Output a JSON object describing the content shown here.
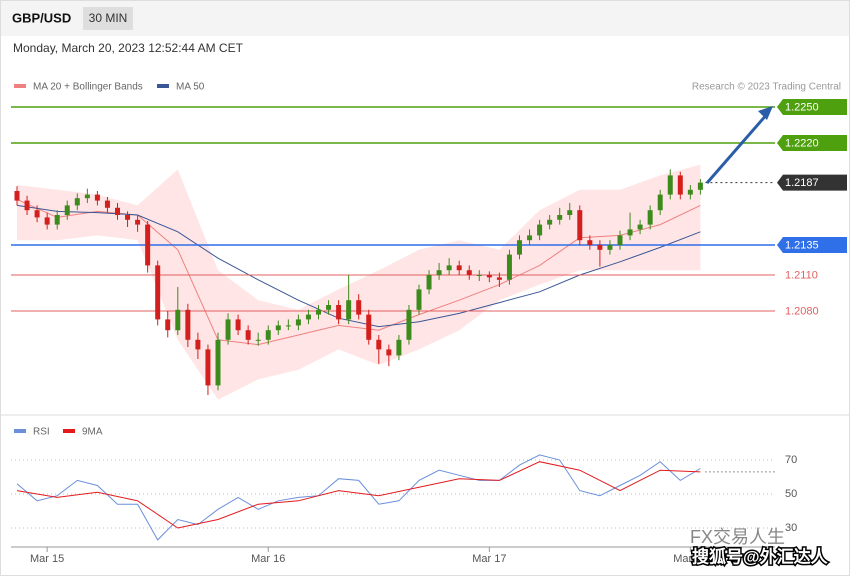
{
  "header": {
    "symbol": "GBP/USD",
    "interval": "30 MIN",
    "timestamp": "Monday, March 20, 2023 12:52:44 AM CET"
  },
  "watermark": {
    "line1": "FX交易人生",
    "line2": "搜狐号@外汇达人"
  },
  "chart_data": [
    {
      "type": "candlestick",
      "note": "Research © 2023 Trading Central",
      "categories": [
        null,
        null,
        null,
        "Mar 15",
        null,
        null,
        null,
        null,
        null,
        null,
        null,
        null,
        null,
        null,
        null,
        null,
        null,
        null,
        null,
        null,
        null,
        null,
        null,
        null,
        null,
        "Mar 16",
        null,
        null,
        null,
        null,
        null,
        null,
        null,
        null,
        null,
        null,
        null,
        null,
        null,
        null,
        null,
        null,
        null,
        null,
        null,
        null,
        null,
        "Mar 17",
        null,
        null,
        null,
        null,
        null,
        null,
        null,
        null,
        null,
        null,
        null,
        null,
        null,
        null,
        null,
        null,
        null,
        null,
        null,
        "Mar 20",
        null
      ],
      "open": [
        1.218,
        1.2172,
        1.2164,
        1.2158,
        1.2152,
        1.216,
        1.2168,
        1.2174,
        1.2177,
        1.2172,
        1.2166,
        1.216,
        1.2156,
        1.2152,
        1.2118,
        1.2073,
        1.2064,
        1.2081,
        1.2056,
        1.2048,
        1.2018,
        1.2056,
        1.2073,
        1.2064,
        1.2056,
        1.2056,
        1.2064,
        1.2068,
        1.2068,
        1.2073,
        1.2077,
        1.2081,
        1.2085,
        1.2073,
        1.2089,
        1.2077,
        1.2056,
        1.2048,
        1.2043,
        1.2056,
        1.2081,
        1.2098,
        1.211,
        1.2114,
        1.2118,
        1.2114,
        1.211,
        1.211,
        1.2108,
        1.2106,
        1.2127,
        1.2139,
        1.2143,
        1.2152,
        1.2156,
        1.216,
        1.2164,
        1.2139,
        1.2135,
        1.2131,
        1.2135,
        1.2143,
        1.2148,
        1.2152,
        1.2164,
        1.2177,
        1.2193,
        1.2177,
        1.2181
      ],
      "high": [
        1.2184,
        1.2176,
        1.2168,
        1.2162,
        1.2164,
        1.2172,
        1.2178,
        1.2182,
        1.218,
        1.2175,
        1.217,
        1.2163,
        1.216,
        1.2155,
        1.2122,
        1.208,
        1.21,
        1.2086,
        1.2062,
        1.2052,
        1.2062,
        1.2078,
        1.2077,
        1.2068,
        1.2062,
        1.2068,
        1.2072,
        1.2073,
        1.2077,
        1.2081,
        1.2085,
        1.2089,
        1.2089,
        1.211,
        1.2094,
        1.2081,
        1.206,
        1.2052,
        1.206,
        1.2085,
        1.2102,
        1.2114,
        1.212,
        1.2124,
        1.2122,
        1.2118,
        1.2114,
        1.2113,
        1.2112,
        1.2131,
        1.2143,
        1.2148,
        1.2156,
        1.216,
        1.2166,
        1.217,
        1.2168,
        1.2143,
        1.2139,
        1.2139,
        1.2147,
        1.2162,
        1.2156,
        1.2168,
        1.2181,
        1.2198,
        1.2196,
        1.2185,
        1.219
      ],
      "low": [
        1.2168,
        1.216,
        1.2154,
        1.2148,
        1.2148,
        1.2156,
        1.2164,
        1.217,
        1.2168,
        1.2162,
        1.2156,
        1.215,
        1.2146,
        1.2112,
        1.2068,
        1.2058,
        1.206,
        1.205,
        1.204,
        1.201,
        1.2014,
        1.2052,
        1.206,
        1.2052,
        1.2051,
        1.2052,
        1.206,
        1.2064,
        1.2064,
        1.2069,
        1.2073,
        1.2077,
        1.2069,
        1.2069,
        1.2073,
        1.2052,
        1.2036,
        1.2034,
        1.2039,
        1.2052,
        1.2077,
        1.2094,
        1.2106,
        1.211,
        1.211,
        1.2106,
        1.2105,
        1.2104,
        1.21,
        1.2102,
        1.2123,
        1.2135,
        1.2139,
        1.2148,
        1.2152,
        1.2156,
        1.2135,
        1.2131,
        1.2117,
        1.2127,
        1.2131,
        1.2139,
        1.2144,
        1.2148,
        1.216,
        1.2173,
        1.2173,
        1.2173,
        1.2177
      ],
      "close": [
        1.2172,
        1.2164,
        1.2158,
        1.2152,
        1.216,
        1.2168,
        1.2174,
        1.2177,
        1.2172,
        1.2166,
        1.216,
        1.2156,
        1.2152,
        1.2118,
        1.2073,
        1.2064,
        1.2081,
        1.2056,
        1.2048,
        1.2018,
        1.2056,
        1.2073,
        1.2064,
        1.2056,
        1.2056,
        1.2064,
        1.2068,
        1.2068,
        1.2073,
        1.2077,
        1.2081,
        1.2085,
        1.2073,
        1.2089,
        1.2077,
        1.2056,
        1.2048,
        1.2043,
        1.2056,
        1.2081,
        1.2098,
        1.211,
        1.2114,
        1.2118,
        1.2114,
        1.211,
        1.211,
        1.2108,
        1.2106,
        1.2127,
        1.2139,
        1.2143,
        1.2152,
        1.2156,
        1.216,
        1.2164,
        1.2139,
        1.2135,
        1.2131,
        1.2135,
        1.2143,
        1.2148,
        1.2152,
        1.2164,
        1.2177,
        1.2193,
        1.2177,
        1.2181,
        1.2187
      ],
      "up_color": "#3d8b1d",
      "down_color": "#d41f1f",
      "ylim": [
        1.2,
        1.229
      ],
      "overlays": [
        {
          "name": "MA 20 + Bollinger Bands",
          "color": "#f08080",
          "band_color": "#ffdcdc",
          "x": [
            0,
            4,
            8,
            12,
            16,
            20,
            24,
            28,
            32,
            36,
            40,
            44,
            48,
            52,
            56,
            60,
            64,
            68
          ],
          "values": [
            1.2173,
            1.2158,
            1.2163,
            1.216,
            1.2131,
            1.2056,
            1.2052,
            1.206,
            1.2068,
            1.2064,
            1.2077,
            1.2089,
            1.2102,
            1.2118,
            1.2141,
            1.2143,
            1.2152,
            1.2168
          ],
          "upper": [
            1.2185,
            1.2181,
            1.2177,
            1.2168,
            1.2198,
            1.2114,
            1.2089,
            1.2081,
            1.2098,
            1.2114,
            1.2131,
            1.2139,
            1.2131,
            1.2164,
            1.2181,
            1.2181,
            1.2193,
            1.2202
          ],
          "lower": [
            1.2139,
            1.2139,
            1.2143,
            1.2139,
            1.2056,
            1.2006,
            1.2023,
            1.2031,
            1.2048,
            1.2035,
            1.2048,
            1.2064,
            1.2089,
            1.2102,
            1.2114,
            1.2114,
            1.2114,
            1.2114
          ]
        },
        {
          "name": "MA 50",
          "color": "#3a5795",
          "x": [
            0,
            4,
            8,
            12,
            16,
            20,
            24,
            28,
            32,
            36,
            40,
            44,
            48,
            52,
            56,
            60,
            64,
            68
          ],
          "values": [
            1.2168,
            1.2163,
            1.2162,
            1.216,
            1.2146,
            1.2124,
            1.2106,
            1.2089,
            1.2074,
            1.2067,
            1.2071,
            1.2078,
            1.2087,
            1.2096,
            1.211,
            1.2121,
            1.2133,
            1.2146
          ]
        }
      ],
      "levels": [
        {
          "value": 1.225,
          "label": "1.2250",
          "color": "#4ea00f",
          "style": "box",
          "dash": false
        },
        {
          "value": 1.222,
          "label": "1.2220",
          "color": "#4ea00f",
          "style": "box",
          "dash": false
        },
        {
          "value": 1.2187,
          "label": "1.2187",
          "color": "#333333",
          "style": "box",
          "dash": true
        },
        {
          "value": 1.2135,
          "label": "1.2135",
          "color": "#2f6fe8",
          "style": "box",
          "dash": false
        },
        {
          "value": 1.211,
          "label": "1.2110",
          "color": "#e06060",
          "style": "text",
          "dash": false
        },
        {
          "value": 1.208,
          "label": "1.2080",
          "color": "#e06060",
          "style": "text",
          "dash": false
        }
      ]
    },
    {
      "type": "line",
      "ylim": [
        20,
        80
      ],
      "yticks": [
        30,
        50,
        70
      ],
      "grid": true,
      "series": [
        {
          "name": "RSI",
          "color": "#6a8fdc",
          "x": [
            0,
            2,
            4,
            6,
            8,
            10,
            12,
            14,
            16,
            18,
            20,
            22,
            24,
            26,
            28,
            30,
            32,
            34,
            36,
            38,
            40,
            42,
            44,
            46,
            48,
            50,
            52,
            54,
            56,
            58,
            60,
            62,
            64,
            66,
            68
          ],
          "values": [
            56,
            46,
            49,
            58,
            55,
            44,
            44,
            23,
            35,
            32,
            41,
            48,
            41,
            46,
            48,
            49,
            59,
            58,
            44,
            46,
            58,
            64,
            61,
            58,
            58,
            67,
            73,
            70,
            52,
            49,
            55,
            61,
            69,
            58,
            65
          ]
        },
        {
          "name": "9MA",
          "color": "#e31a1c",
          "x": [
            0,
            4,
            8,
            12,
            16,
            20,
            24,
            28,
            32,
            36,
            40,
            44,
            48,
            52,
            56,
            60,
            64,
            68
          ],
          "values": [
            52,
            48,
            51,
            46,
            30,
            35,
            44,
            46,
            52,
            49,
            54,
            59,
            58,
            69,
            64,
            52,
            64,
            63
          ]
        }
      ]
    }
  ]
}
